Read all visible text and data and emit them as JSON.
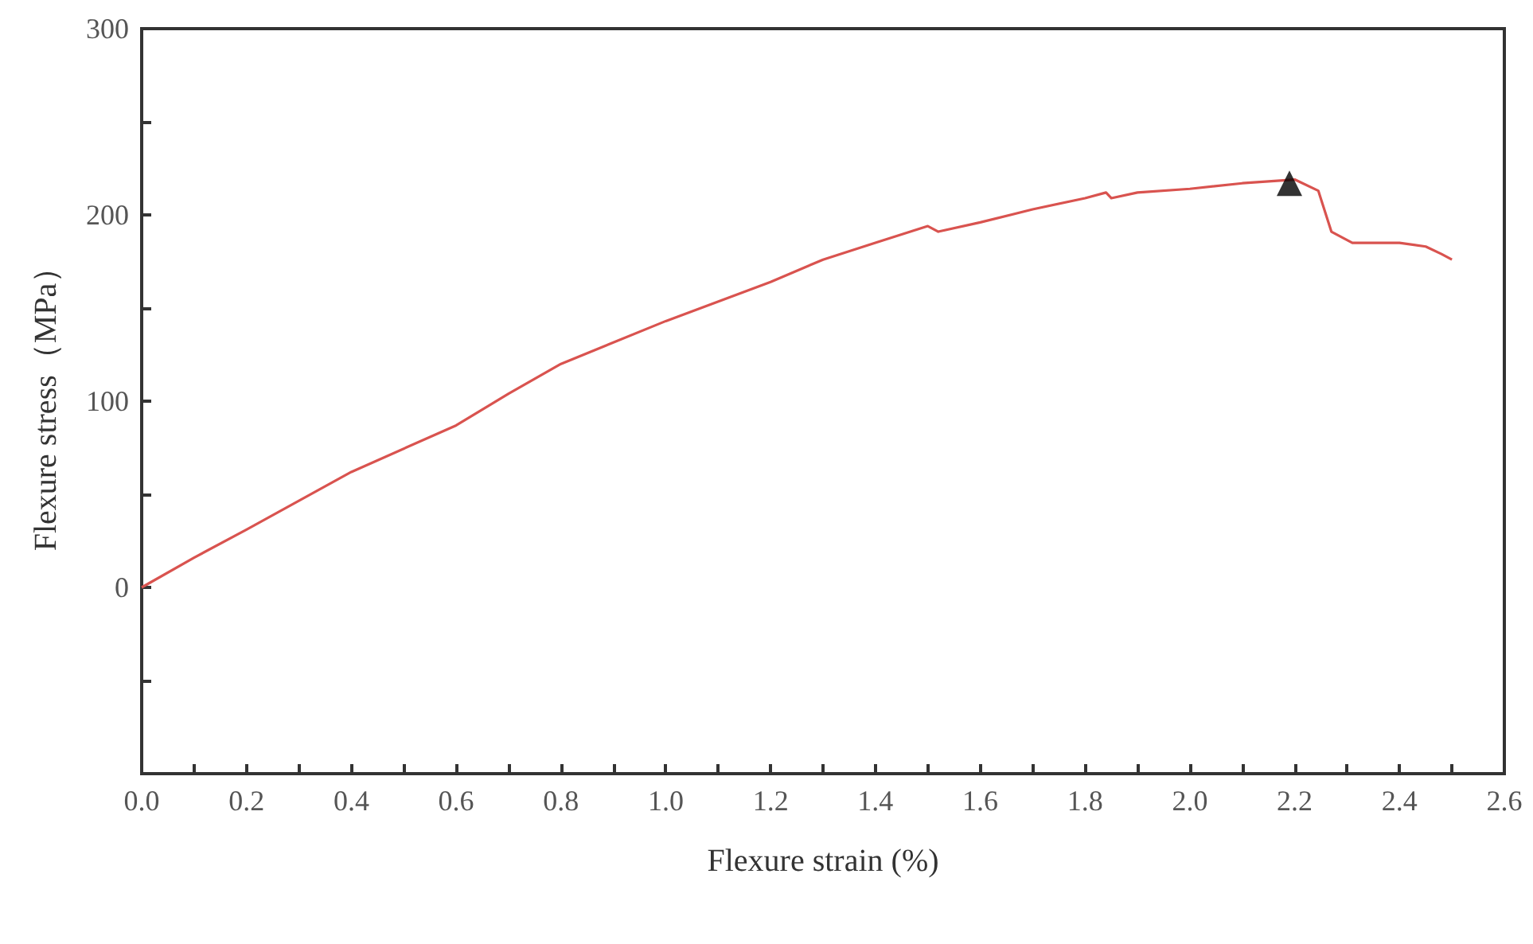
{
  "chart_data": {
    "type": "line",
    "xlabel": "Flexure strain (%)",
    "ylabel": "Flexure stress（MPa）",
    "xlim": [
      0,
      2.6
    ],
    "ylim": [
      -100,
      300
    ],
    "xticks": [
      {
        "value": 0,
        "label": "0.0"
      },
      {
        "value": 0.1,
        "label": null
      },
      {
        "value": 0.2,
        "label": "0.2"
      },
      {
        "value": 0.3,
        "label": null
      },
      {
        "value": 0.4,
        "label": "0.4"
      },
      {
        "value": 0.5,
        "label": null
      },
      {
        "value": 0.6,
        "label": "0.6"
      },
      {
        "value": 0.7,
        "label": null
      },
      {
        "value": 0.8,
        "label": "0.8"
      },
      {
        "value": 0.9,
        "label": null
      },
      {
        "value": 1,
        "label": "1.0"
      },
      {
        "value": 1.1,
        "label": null
      },
      {
        "value": 1.2,
        "label": "1.2"
      },
      {
        "value": 1.3,
        "label": null
      },
      {
        "value": 1.4,
        "label": "1.4"
      },
      {
        "value": 1.5,
        "label": null
      },
      {
        "value": 1.6,
        "label": "1.6"
      },
      {
        "value": 1.7,
        "label": null
      },
      {
        "value": 1.8,
        "label": "1.8"
      },
      {
        "value": 1.9,
        "label": null
      },
      {
        "value": 2,
        "label": "2.0"
      },
      {
        "value": 2.1,
        "label": null
      },
      {
        "value": 2.2,
        "label": "2.2"
      },
      {
        "value": 2.3,
        "label": null
      },
      {
        "value": 2.4,
        "label": "2.4"
      },
      {
        "value": 2.5,
        "label": null
      },
      {
        "value": 2.6,
        "label": "2.6"
      }
    ],
    "yticks": [
      {
        "value": -100,
        "label": null
      },
      {
        "value": -50,
        "label": null
      },
      0,
      {
        "value": 50,
        "label": null
      },
      100,
      {
        "value": 150,
        "label": null
      },
      200,
      {
        "value": 250,
        "label": null
      },
      300
    ],
    "series": [
      {
        "color": "#d9534f",
        "marker": "none",
        "x": [
          0,
          0.1,
          0.2,
          0.4,
          0.6,
          0.7,
          0.8,
          1.0,
          1.2,
          1.3,
          1.4,
          1.5,
          1.52,
          1.6,
          1.7,
          1.8,
          1.84,
          1.85,
          1.9,
          2.0,
          2.1,
          2.2,
          2.245,
          2.27,
          2.31,
          2.4,
          2.45,
          2.48,
          2.5
        ],
        "values": [
          0,
          16,
          31,
          62,
          87,
          104,
          120,
          143,
          164,
          176,
          185,
          194,
          191,
          196,
          203,
          209,
          212,
          209,
          212,
          214,
          217,
          219,
          213,
          191,
          185,
          185,
          183,
          179,
          176
        ]
      },
      {
        "type": "scatter",
        "color": "#000000",
        "marker": "triangle",
        "x": [
          2.19
        ],
        "values": [
          217
        ]
      }
    ]
  }
}
